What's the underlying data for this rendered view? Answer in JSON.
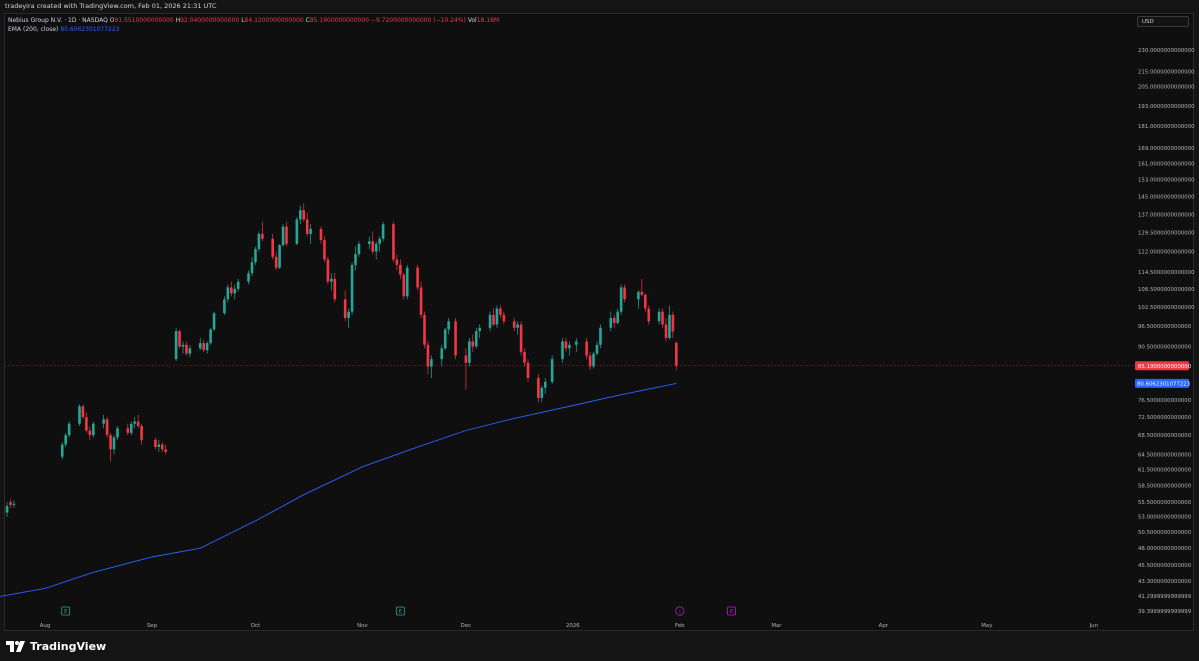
{
  "header": {
    "credit": "tradeyira created with TradingView.com, Feb 01, 2026 21:31 UTC"
  },
  "legend": {
    "symbol": "Nebius Group N.V. · 1D · NASDAQ",
    "o_label": "O",
    "o_value": "91.5510000000000",
    "h_label": "H",
    "h_value": "92.0400000000000",
    "l_label": "L",
    "l_value": "84.1200000000000",
    "c_label": "C",
    "c_value": "85.1900000000000",
    "change": "−9.7200000000000 (−10.24%)",
    "vol_label": "Vol",
    "vol_value": "18.18M",
    "ema_label": "EMA (200, close)",
    "ema_value": "80.6062301077223"
  },
  "currency": "USD",
  "brand": {
    "name": "TradingView"
  },
  "colors": {
    "up": "#26a69a",
    "down": "#f23645",
    "ema": "#2962ff",
    "price_badge": "#f23645",
    "ema_badge": "#2962ff"
  },
  "chart_data": {
    "type": "candlestick",
    "scale": "log",
    "y_ticks": [
      "230.0000000000000",
      "215.0000000000000",
      "205.0000000000000",
      "193.0000000000000",
      "181.0000000000000",
      "169.0000000000000",
      "161.0000000000000",
      "153.0000000000000",
      "145.0000000000000",
      "137.0000000000000",
      "129.5000000000000",
      "122.0000000000000",
      "114.5000000000000",
      "108.5000000000000",
      "102.5000000000000",
      "96.5000000000000",
      "90.5000000000000",
      "76.5000000000000",
      "72.5000000000000",
      "68.5000000000000",
      "64.5000000000000",
      "61.5000000000000",
      "58.5000000000000",
      "55.5000000000000",
      "53.0000000000000",
      "50.5000000000000",
      "48.0000000000000",
      "45.5000000000000",
      "43.3000000000000",
      "41.2999999999999",
      "39.3999999999999"
    ],
    "y_ticks_values": [
      230,
      215,
      205,
      193,
      181,
      169,
      161,
      153,
      145,
      137,
      129.5,
      122,
      114.5,
      108.5,
      102.5,
      96.5,
      90.5,
      76.5,
      72.5,
      68.5,
      64.5,
      61.5,
      58.5,
      55.5,
      53,
      50.5,
      48,
      45.5,
      43.3,
      41.3,
      39.4
    ],
    "x_ticks": [
      "Aug",
      "Sep",
      "Oct",
      "Nov",
      "Dec",
      "2026",
      "Feb",
      "Mar",
      "Apr",
      "May",
      "Jun"
    ],
    "x_ticks_dates": [
      "2025-08-01",
      "2025-09-01",
      "2025-10-01",
      "2025-11-01",
      "2025-12-01",
      "2026-01-01",
      "2026-02-01",
      "2026-03-01",
      "2026-04-01",
      "2026-05-01",
      "2026-06-01"
    ],
    "last_price": {
      "label": "85.1900000000000",
      "value": 85.19
    },
    "ema_last": {
      "label": "80.6062301077223",
      "value": 80.6062301077223
    },
    "candles": [
      [
        "2025-07-07",
        52,
        53,
        51,
        52.5
      ],
      [
        "2025-07-08",
        52.5,
        53.5,
        51.5,
        52
      ],
      [
        "2025-07-09",
        52,
        53,
        51,
        52.8
      ],
      [
        "2025-07-10",
        52.8,
        53.6,
        51.8,
        52.2
      ],
      [
        "2025-07-11",
        52,
        53.5,
        51,
        53
      ],
      [
        "2025-07-14",
        53,
        53.8,
        52,
        52.2
      ],
      [
        "2025-07-15",
        52.2,
        52.8,
        50.5,
        51
      ],
      [
        "2025-07-16",
        51,
        52.5,
        50.5,
        52
      ],
      [
        "2025-07-17",
        52,
        53.2,
        51.5,
        52.5
      ],
      [
        "2025-07-18",
        52.5,
        54,
        52,
        53.7
      ],
      [
        "2025-07-21",
        53.7,
        55.5,
        53,
        54.8
      ],
      [
        "2025-07-22",
        55.5,
        56,
        54.5,
        55
      ],
      [
        "2025-07-23",
        55,
        55.8,
        54.5,
        55.2
      ],
      [
        "2025-08-06",
        64,
        67,
        63.5,
        66.5
      ],
      [
        "2025-08-07",
        66.5,
        69,
        66,
        68.5
      ],
      [
        "2025-08-08",
        68.5,
        71.5,
        68,
        71
      ],
      [
        "2025-08-11",
        71,
        75.5,
        70.5,
        75
      ],
      [
        "2025-08-12",
        75,
        75.5,
        72,
        72.5
      ],
      [
        "2025-08-13",
        72.5,
        73.5,
        69,
        69.5
      ],
      [
        "2025-08-14",
        69.5,
        70.5,
        67.5,
        68.5
      ],
      [
        "2025-08-15",
        68.5,
        71.5,
        68,
        71
      ],
      [
        "2025-08-18",
        71,
        73,
        70,
        72
      ],
      [
        "2025-08-19",
        72,
        72.5,
        68,
        68.5
      ],
      [
        "2025-08-20",
        68.5,
        69,
        63,
        65.5
      ],
      [
        "2025-08-21",
        65.5,
        68.5,
        64.5,
        68
      ],
      [
        "2025-08-22",
        68,
        70.5,
        67.5,
        70
      ],
      [
        "2025-08-25",
        70,
        71,
        68.5,
        69
      ],
      [
        "2025-08-26",
        69,
        71.5,
        68.5,
        71
      ],
      [
        "2025-08-27",
        71,
        72.5,
        70,
        71.5
      ],
      [
        "2025-08-28",
        71.5,
        73,
        70,
        70.5
      ],
      [
        "2025-08-29",
        70.5,
        71,
        66.5,
        67.5
      ],
      [
        "2025-09-02",
        67.5,
        68,
        65.5,
        66
      ],
      [
        "2025-09-03",
        66,
        67.5,
        65,
        66.5
      ],
      [
        "2025-09-04",
        66.5,
        67,
        65,
        65.5
      ],
      [
        "2025-09-05",
        65.5,
        66.5,
        64.5,
        65
      ],
      [
        "2025-09-08",
        87,
        96,
        86.5,
        95
      ],
      [
        "2025-09-09",
        95,
        95.5,
        90,
        90.5
      ],
      [
        "2025-09-10",
        90.5,
        92,
        88.5,
        91
      ],
      [
        "2025-09-11",
        91,
        92,
        88,
        88.5
      ],
      [
        "2025-09-12",
        88.5,
        91,
        87.5,
        90
      ],
      [
        "2025-09-15",
        90,
        93,
        89.5,
        91.5
      ],
      [
        "2025-09-16",
        91.5,
        92.5,
        89,
        89.5
      ],
      [
        "2025-09-17",
        89.5,
        92,
        88.5,
        91.5
      ],
      [
        "2025-09-18",
        91.5,
        96,
        91,
        95.5
      ],
      [
        "2025-09-19",
        95.5,
        101,
        95,
        100.5
      ],
      [
        "2025-09-22",
        100.5,
        106,
        100,
        105
      ],
      [
        "2025-09-23",
        105,
        110,
        104,
        109
      ],
      [
        "2025-09-24",
        109,
        111,
        106,
        107
      ],
      [
        "2025-09-25",
        107,
        110,
        105,
        108.5
      ],
      [
        "2025-09-26",
        108.5,
        112,
        107.5,
        111
      ],
      [
        "2025-09-29",
        111,
        115,
        110,
        114
      ],
      [
        "2025-09-30",
        114,
        120,
        113,
        118
      ],
      [
        "2025-10-01",
        118,
        124,
        117,
        123
      ],
      [
        "2025-10-02",
        123,
        130,
        122,
        129
      ],
      [
        "2025-10-03",
        129,
        134,
        126,
        127
      ],
      [
        "2025-10-06",
        127,
        129,
        119,
        120
      ],
      [
        "2025-10-07",
        120,
        122,
        115,
        116
      ],
      [
        "2025-10-08",
        116,
        125,
        115.5,
        124.5
      ],
      [
        "2025-10-09",
        124.5,
        133,
        124,
        132
      ],
      [
        "2025-10-10",
        132,
        134,
        124,
        125
      ],
      [
        "2025-10-13",
        125,
        136,
        124.5,
        135
      ],
      [
        "2025-10-14",
        135,
        141,
        133,
        139
      ],
      [
        "2025-10-15",
        139,
        142,
        134,
        135
      ],
      [
        "2025-10-16",
        135,
        138,
        128,
        129
      ],
      [
        "2025-10-17",
        129,
        133,
        125,
        131
      ],
      [
        "2025-10-20",
        131,
        132,
        125,
        126.5
      ],
      [
        "2025-10-21",
        126.5,
        128,
        118,
        119
      ],
      [
        "2025-10-22",
        119,
        120,
        110,
        111
      ],
      [
        "2025-10-23",
        111,
        114,
        108,
        112
      ],
      [
        "2025-10-24",
        112,
        114,
        104,
        105
      ],
      [
        "2025-10-27",
        105,
        108,
        98,
        99
      ],
      [
        "2025-10-28",
        99,
        102,
        96,
        101
      ],
      [
        "2025-10-29",
        101,
        118,
        100,
        117
      ],
      [
        "2025-10-30",
        117,
        124,
        115,
        121
      ],
      [
        "2025-10-31",
        121,
        126,
        120,
        125
      ],
      [
        "2025-11-03",
        125,
        128,
        123,
        126
      ],
      [
        "2025-11-04",
        126,
        130,
        121,
        122
      ],
      [
        "2025-11-05",
        122,
        126,
        119,
        125
      ],
      [
        "2025-11-06",
        125,
        128,
        122,
        127
      ],
      [
        "2025-11-07",
        127,
        134,
        126,
        133
      ],
      [
        "2025-11-10",
        133,
        134,
        118,
        119
      ],
      [
        "2025-11-11",
        119,
        121,
        115,
        117
      ],
      [
        "2025-11-12",
        117,
        119,
        112,
        113.5
      ],
      [
        "2025-11-13",
        113.5,
        114,
        105,
        106
      ],
      [
        "2025-11-14",
        106,
        117,
        105,
        116
      ],
      [
        "2025-11-17",
        116,
        117,
        108,
        109
      ],
      [
        "2025-11-18",
        109,
        111,
        99,
        100
      ],
      [
        "2025-11-19",
        100,
        101,
        90,
        91
      ],
      [
        "2025-11-20",
        91,
        92,
        83,
        85
      ],
      [
        "2025-11-21",
        85,
        88,
        82,
        87
      ],
      [
        "2025-11-24",
        87,
        91,
        85,
        90
      ],
      [
        "2025-11-25",
        90,
        96,
        89.5,
        95.5
      ],
      [
        "2025-11-26",
        95.5,
        99,
        94,
        98
      ],
      [
        "2025-11-28",
        98,
        99,
        87,
        88
      ],
      [
        "2025-12-01",
        88,
        90,
        79,
        86
      ],
      [
        "2025-12-02",
        86,
        93,
        85,
        92
      ],
      [
        "2025-12-03",
        92,
        94,
        89,
        90.5
      ],
      [
        "2025-12-04",
        90.5,
        96,
        90,
        95
      ],
      [
        "2025-12-05",
        95,
        97,
        93,
        96
      ],
      [
        "2025-12-08",
        96,
        101,
        95,
        100
      ],
      [
        "2025-12-09",
        100,
        102,
        96.5,
        97
      ],
      [
        "2025-12-10",
        97,
        103,
        96,
        102
      ],
      [
        "2025-12-11",
        102,
        103,
        99,
        100
      ],
      [
        "2025-12-12",
        100,
        101,
        97,
        98
      ],
      [
        "2025-12-15",
        98,
        99,
        95,
        96
      ],
      [
        "2025-12-16",
        96,
        98,
        94,
        97
      ],
      [
        "2025-12-17",
        97,
        98,
        88,
        89
      ],
      [
        "2025-12-18",
        89,
        90,
        85,
        86
      ],
      [
        "2025-12-19",
        86,
        87,
        81,
        82
      ],
      [
        "2025-12-22",
        82,
        83,
        76,
        77
      ],
      [
        "2025-12-23",
        77,
        80,
        76,
        79.5
      ],
      [
        "2025-12-24",
        79.5,
        82,
        78,
        81
      ],
      [
        "2025-12-26",
        81,
        88,
        80.5,
        87
      ],
      [
        "2025-12-29",
        87,
        93,
        86,
        92
      ],
      [
        "2025-12-30",
        92,
        93,
        89,
        90
      ],
      [
        "2025-12-31",
        90,
        92,
        88,
        91
      ],
      [
        "2026-01-02",
        91,
        93,
        89,
        92
      ],
      [
        "2026-01-05",
        92,
        93,
        87,
        88
      ],
      [
        "2026-01-06",
        88,
        89,
        84,
        85
      ],
      [
        "2026-01-07",
        85,
        89,
        84.5,
        88.5
      ],
      [
        "2026-01-08",
        88.5,
        92,
        88,
        91
      ],
      [
        "2026-01-09",
        91,
        97,
        90,
        96
      ],
      [
        "2026-01-12",
        96,
        101,
        95,
        99
      ],
      [
        "2026-01-13",
        99,
        100,
        96,
        97.5
      ],
      [
        "2026-01-14",
        97.5,
        102,
        97,
        101
      ],
      [
        "2026-01-15",
        101,
        110,
        100,
        109
      ],
      [
        "2026-01-16",
        109,
        110,
        104,
        105
      ],
      [
        "2026-01-20",
        105,
        108,
        102,
        107.5
      ],
      [
        "2026-01-21",
        107.5,
        112,
        106,
        106.5
      ],
      [
        "2026-01-22",
        106.5,
        107,
        101,
        102
      ],
      [
        "2026-01-23",
        102,
        103,
        97,
        98
      ],
      [
        "2026-01-26",
        98,
        102,
        97,
        101
      ],
      [
        "2026-01-27",
        101,
        102,
        96,
        97
      ],
      [
        "2026-01-28",
        97,
        99,
        92,
        93
      ],
      [
        "2026-01-29",
        93,
        103,
        92.5,
        100
      ],
      [
        "2026-01-30",
        100,
        101,
        93,
        94.9
      ],
      [
        "2026-01-30b",
        91.551,
        92.04,
        84.12,
        85.19
      ]
    ],
    "ema": [
      [
        "2025-07-07",
        40.3
      ],
      [
        "2025-08-01",
        42.3
      ],
      [
        "2025-08-15",
        44.5
      ],
      [
        "2025-09-01",
        46.7
      ],
      [
        "2025-09-15",
        48.0
      ],
      [
        "2025-10-01",
        52.3
      ],
      [
        "2025-10-15",
        56.8
      ],
      [
        "2025-11-01",
        62.0
      ],
      [
        "2025-11-15",
        65.5
      ],
      [
        "2025-12-01",
        69.5
      ],
      [
        "2025-12-15",
        72.2
      ],
      [
        "2026-01-01",
        75.2
      ],
      [
        "2026-01-15",
        77.8
      ],
      [
        "2026-01-31",
        80.6062301077223
      ]
    ],
    "events": [
      {
        "date": "2025-08-07",
        "label": "E"
      },
      {
        "date": "2025-11-12",
        "label": "E"
      },
      {
        "date": "2026-02-01",
        "label": "⚡"
      },
      {
        "date": "2026-02-16",
        "label": "E"
      }
    ],
    "xlabel": "",
    "ylabel": "",
    "grid": false,
    "legend_position": "top-left"
  }
}
